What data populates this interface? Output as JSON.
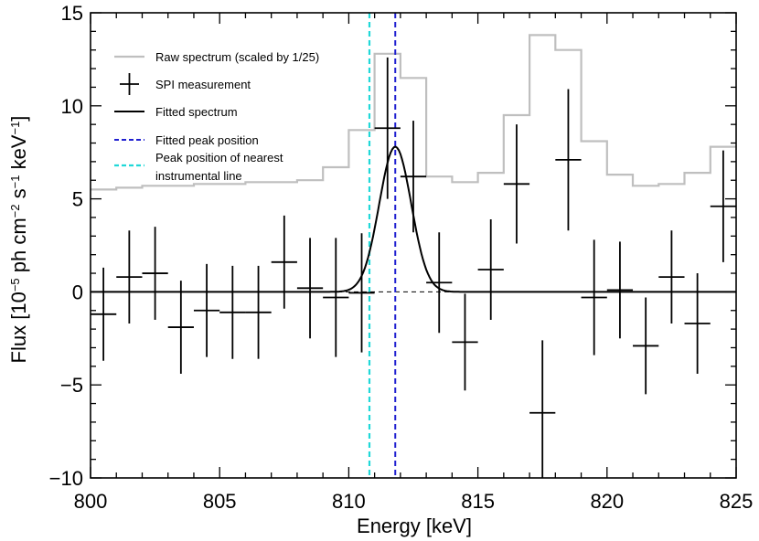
{
  "chart_data": {
    "type": "line",
    "title": "",
    "xlabel": "Energy [keV]",
    "ylabel_parts": {
      "a": "Flux [10",
      "b": "−5",
      "c": " ph cm",
      "d": "−2",
      "e": " s",
      "f": "−1",
      "g": " keV",
      "h": "−1",
      "i": "]"
    },
    "xlim": [
      800,
      825
    ],
    "ylim": [
      -10,
      15
    ],
    "xticks": [
      "800",
      "805",
      "810",
      "815",
      "820",
      "825"
    ],
    "xtick_values": [
      800,
      805,
      810,
      815,
      820,
      825
    ],
    "yticks": [
      "−10",
      "−5",
      "0",
      "5",
      "10",
      "15"
    ],
    "ytick_values": [
      -10,
      -5,
      0,
      5,
      10,
      15
    ],
    "colors": {
      "raw": "#bfbfbf",
      "measurement": "#000000",
      "fit": "#000000",
      "peak": "#2020d0",
      "instrumental": "#20d8d8"
    },
    "legend": [
      {
        "label": "Raw spectrum (scaled by 1/25)",
        "style": "raw"
      },
      {
        "label": "SPI measurement",
        "style": "errorbar"
      },
      {
        "label": "Fitted spectrum",
        "style": "fit"
      },
      {
        "label": "Fitted peak position",
        "style": "peak"
      },
      {
        "label": "Peak position of nearest",
        "label2": "instrumental line",
        "style": "instrumental"
      }
    ],
    "raw_spectrum": {
      "name": "Raw spectrum (scaled by 1/25)",
      "edges": [
        800,
        801,
        802,
        803,
        804,
        805,
        806,
        807,
        808,
        809,
        810,
        811,
        812,
        813,
        814,
        815,
        816,
        817,
        818,
        819,
        820,
        821,
        822,
        823,
        824,
        825
      ],
      "values": [
        5.5,
        5.6,
        5.7,
        5.7,
        5.8,
        5.8,
        5.9,
        5.9,
        6.0,
        6.7,
        8.7,
        12.8,
        11.5,
        6.2,
        5.9,
        6.4,
        9.5,
        13.8,
        13.0,
        8.1,
        6.3,
        5.7,
        5.8,
        6.4,
        7.8
      ]
    },
    "measurements": {
      "name": "SPI measurement",
      "x": [
        800.5,
        801.5,
        802.5,
        803.5,
        804.5,
        805.5,
        806.5,
        807.5,
        808.5,
        809.5,
        810.5,
        811.5,
        812.5,
        813.5,
        814.5,
        815.5,
        816.5,
        817.5,
        818.5,
        819.5,
        820.5,
        821.5,
        822.5,
        823.5,
        824.5
      ],
      "y": [
        -1.2,
        0.8,
        1.0,
        -1.9,
        -1.0,
        -1.1,
        -1.1,
        1.6,
        0.2,
        -0.3,
        -0.05,
        8.8,
        6.2,
        0.5,
        -2.7,
        1.2,
        5.8,
        -6.5,
        7.1,
        -0.3,
        0.1,
        -2.9,
        0.8,
        -1.7,
        4.6
      ],
      "err": [
        2.5,
        2.5,
        2.5,
        2.5,
        2.5,
        2.5,
        2.5,
        2.5,
        2.7,
        3.2,
        3.2,
        3.8,
        3.0,
        2.7,
        2.6,
        2.7,
        3.2,
        3.9,
        3.8,
        3.1,
        2.6,
        2.6,
        2.5,
        2.7,
        3.0
      ],
      "xerr": 0.5
    },
    "fit": {
      "name": "Fitted spectrum",
      "center": 811.8,
      "amplitude": 7.8,
      "sigma": 0.62,
      "baseline": 0
    },
    "fitted_peak_position": 811.8,
    "instrumental_line_position": 810.8
  }
}
